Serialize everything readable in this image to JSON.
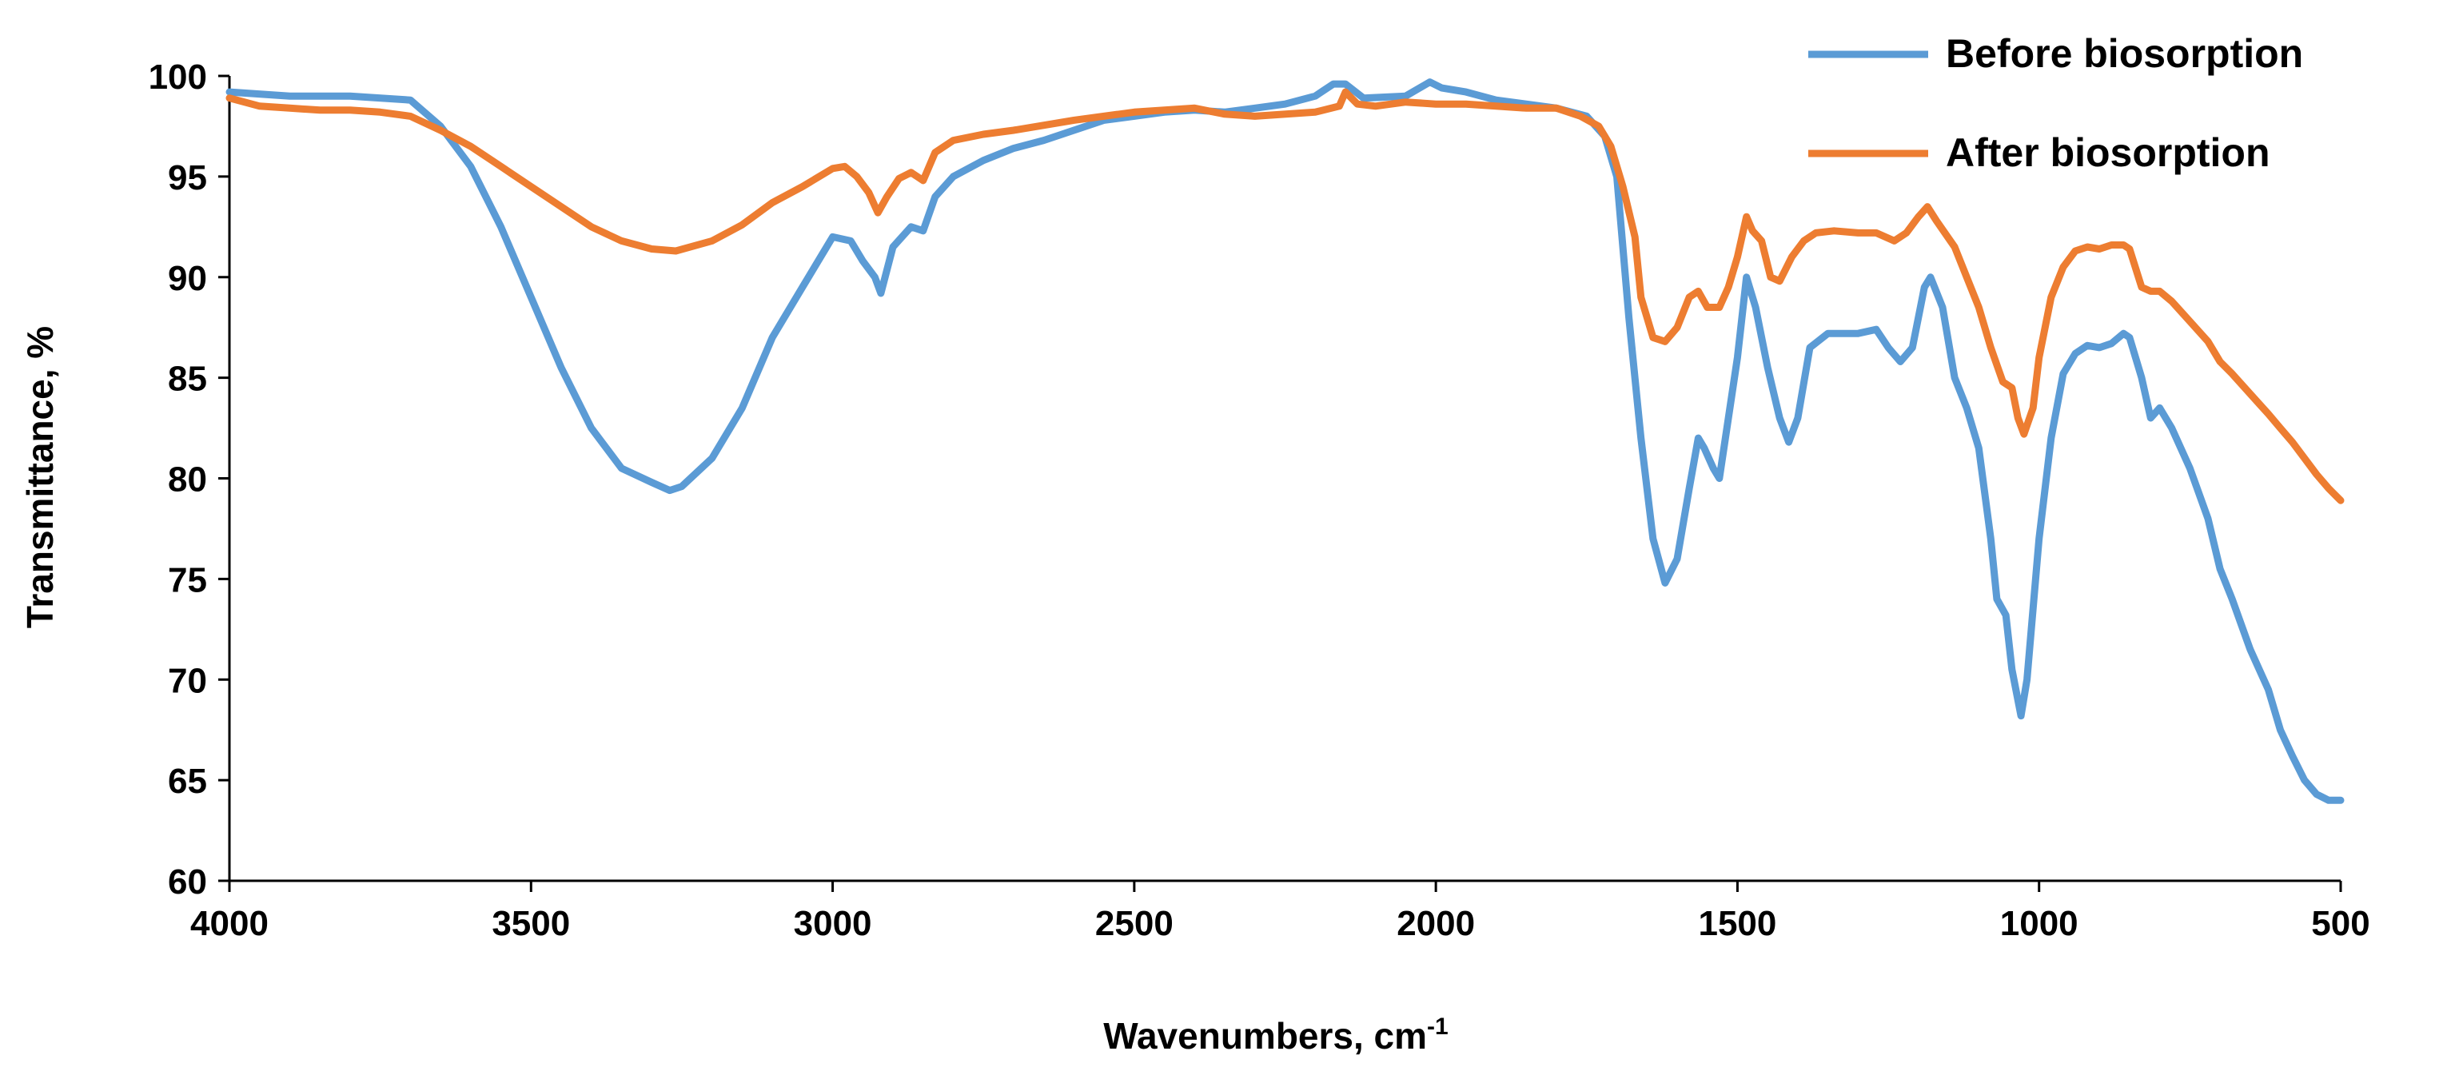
{
  "chart_data": {
    "type": "line",
    "title": "",
    "xlabel": "Wavenumbers, cm",
    "xlabel_superscript": "-1",
    "ylabel": "Transmittance, %",
    "xlim": [
      4000,
      500
    ],
    "ylim": [
      60,
      100
    ],
    "x_reversed": true,
    "x_ticks": [
      4000,
      3500,
      3000,
      2500,
      2000,
      1500,
      1000,
      500
    ],
    "y_ticks": [
      60,
      65,
      70,
      75,
      80,
      85,
      90,
      95,
      100
    ],
    "grid": false,
    "legend_position": "top-right",
    "series": [
      {
        "name": "Before biosorption",
        "color": "#5B9BD5",
        "points": [
          [
            4000,
            99.2
          ],
          [
            3900,
            99.0
          ],
          [
            3800,
            99.0
          ],
          [
            3700,
            98.8
          ],
          [
            3650,
            97.5
          ],
          [
            3600,
            95.5
          ],
          [
            3550,
            92.5
          ],
          [
            3500,
            89
          ],
          [
            3450,
            85.5
          ],
          [
            3400,
            82.5
          ],
          [
            3350,
            80.5
          ],
          [
            3300,
            79.8
          ],
          [
            3270,
            79.4
          ],
          [
            3250,
            79.6
          ],
          [
            3200,
            81
          ],
          [
            3150,
            83.5
          ],
          [
            3100,
            87
          ],
          [
            3050,
            89.5
          ],
          [
            3000,
            92
          ],
          [
            2970,
            91.8
          ],
          [
            2950,
            90.8
          ],
          [
            2930,
            90
          ],
          [
            2920,
            89.2
          ],
          [
            2900,
            91.5
          ],
          [
            2870,
            92.5
          ],
          [
            2850,
            92.3
          ],
          [
            2830,
            94
          ],
          [
            2800,
            95
          ],
          [
            2750,
            95.8
          ],
          [
            2700,
            96.4
          ],
          [
            2650,
            96.8
          ],
          [
            2600,
            97.3
          ],
          [
            2550,
            97.8
          ],
          [
            2500,
            98.0
          ],
          [
            2450,
            98.2
          ],
          [
            2400,
            98.3
          ],
          [
            2350,
            98.2
          ],
          [
            2300,
            98.4
          ],
          [
            2250,
            98.6
          ],
          [
            2200,
            99.0
          ],
          [
            2170,
            99.6
          ],
          [
            2150,
            99.6
          ],
          [
            2120,
            98.9
          ],
          [
            2050,
            99.0
          ],
          [
            2010,
            99.7
          ],
          [
            1990,
            99.4
          ],
          [
            1950,
            99.2
          ],
          [
            1900,
            98.8
          ],
          [
            1800,
            98.4
          ],
          [
            1750,
            98.0
          ],
          [
            1720,
            97.0
          ],
          [
            1700,
            95
          ],
          [
            1680,
            88
          ],
          [
            1660,
            82
          ],
          [
            1640,
            77
          ],
          [
            1620,
            74.8
          ],
          [
            1600,
            76
          ],
          [
            1580,
            79.5
          ],
          [
            1565,
            82
          ],
          [
            1555,
            81.5
          ],
          [
            1540,
            80.5
          ],
          [
            1530,
            80
          ],
          [
            1515,
            83
          ],
          [
            1500,
            86
          ],
          [
            1485,
            90
          ],
          [
            1470,
            88.5
          ],
          [
            1450,
            85.5
          ],
          [
            1430,
            83
          ],
          [
            1415,
            81.8
          ],
          [
            1400,
            83
          ],
          [
            1380,
            86.5
          ],
          [
            1350,
            87.2
          ],
          [
            1320,
            87.2
          ],
          [
            1300,
            87.2
          ],
          [
            1270,
            87.4
          ],
          [
            1250,
            86.5
          ],
          [
            1230,
            85.8
          ],
          [
            1210,
            86.5
          ],
          [
            1190,
            89.5
          ],
          [
            1180,
            90
          ],
          [
            1160,
            88.5
          ],
          [
            1140,
            85
          ],
          [
            1120,
            83.5
          ],
          [
            1100,
            81.5
          ],
          [
            1080,
            77
          ],
          [
            1070,
            74
          ],
          [
            1055,
            73.2
          ],
          [
            1045,
            70.5
          ],
          [
            1030,
            68.2
          ],
          [
            1020,
            70
          ],
          [
            1000,
            77
          ],
          [
            980,
            82
          ],
          [
            960,
            85.2
          ],
          [
            940,
            86.2
          ],
          [
            920,
            86.6
          ],
          [
            900,
            86.5
          ],
          [
            880,
            86.7
          ],
          [
            860,
            87.2
          ],
          [
            850,
            87
          ],
          [
            830,
            85
          ],
          [
            815,
            83
          ],
          [
            800,
            83.5
          ],
          [
            780,
            82.5
          ],
          [
            750,
            80.5
          ],
          [
            720,
            78
          ],
          [
            700,
            75.5
          ],
          [
            680,
            74
          ],
          [
            650,
            71.5
          ],
          [
            620,
            69.5
          ],
          [
            600,
            67.5
          ],
          [
            580,
            66.2
          ],
          [
            560,
            65
          ],
          [
            540,
            64.3
          ],
          [
            520,
            64.0
          ],
          [
            500,
            64.0
          ]
        ]
      },
      {
        "name": "After biosorption",
        "color": "#ED7D31",
        "points": [
          [
            4000,
            98.9
          ],
          [
            3950,
            98.5
          ],
          [
            3900,
            98.4
          ],
          [
            3850,
            98.3
          ],
          [
            3800,
            98.3
          ],
          [
            3750,
            98.2
          ],
          [
            3700,
            98.0
          ],
          [
            3650,
            97.3
          ],
          [
            3600,
            96.5
          ],
          [
            3550,
            95.5
          ],
          [
            3500,
            94.5
          ],
          [
            3450,
            93.5
          ],
          [
            3400,
            92.5
          ],
          [
            3350,
            91.8
          ],
          [
            3300,
            91.4
          ],
          [
            3260,
            91.3
          ],
          [
            3200,
            91.8
          ],
          [
            3150,
            92.6
          ],
          [
            3100,
            93.7
          ],
          [
            3050,
            94.5
          ],
          [
            3000,
            95.4
          ],
          [
            2980,
            95.5
          ],
          [
            2960,
            95.0
          ],
          [
            2940,
            94.2
          ],
          [
            2925,
            93.2
          ],
          [
            2910,
            94.0
          ],
          [
            2890,
            94.9
          ],
          [
            2870,
            95.2
          ],
          [
            2850,
            94.8
          ],
          [
            2830,
            96.2
          ],
          [
            2800,
            96.8
          ],
          [
            2750,
            97.1
          ],
          [
            2700,
            97.3
          ],
          [
            2600,
            97.8
          ],
          [
            2500,
            98.2
          ],
          [
            2400,
            98.4
          ],
          [
            2350,
            98.1
          ],
          [
            2300,
            98.0
          ],
          [
            2200,
            98.2
          ],
          [
            2160,
            98.5
          ],
          [
            2150,
            99.2
          ],
          [
            2130,
            98.6
          ],
          [
            2100,
            98.5
          ],
          [
            2050,
            98.7
          ],
          [
            2000,
            98.6
          ],
          [
            1950,
            98.6
          ],
          [
            1900,
            98.5
          ],
          [
            1850,
            98.4
          ],
          [
            1800,
            98.4
          ],
          [
            1760,
            98.0
          ],
          [
            1730,
            97.5
          ],
          [
            1710,
            96.5
          ],
          [
            1690,
            94.5
          ],
          [
            1670,
            92
          ],
          [
            1660,
            89
          ],
          [
            1640,
            87
          ],
          [
            1620,
            86.8
          ],
          [
            1600,
            87.5
          ],
          [
            1580,
            89
          ],
          [
            1565,
            89.3
          ],
          [
            1550,
            88.5
          ],
          [
            1530,
            88.5
          ],
          [
            1515,
            89.5
          ],
          [
            1500,
            91
          ],
          [
            1485,
            93
          ],
          [
            1475,
            92.3
          ],
          [
            1460,
            91.8
          ],
          [
            1445,
            90
          ],
          [
            1430,
            89.8
          ],
          [
            1410,
            91
          ],
          [
            1390,
            91.8
          ],
          [
            1370,
            92.2
          ],
          [
            1340,
            92.3
          ],
          [
            1300,
            92.2
          ],
          [
            1270,
            92.2
          ],
          [
            1240,
            91.8
          ],
          [
            1220,
            92.2
          ],
          [
            1200,
            93
          ],
          [
            1185,
            93.5
          ],
          [
            1170,
            92.8
          ],
          [
            1140,
            91.5
          ],
          [
            1120,
            90
          ],
          [
            1100,
            88.5
          ],
          [
            1080,
            86.5
          ],
          [
            1060,
            84.8
          ],
          [
            1045,
            84.5
          ],
          [
            1035,
            83
          ],
          [
            1025,
            82.2
          ],
          [
            1010,
            83.5
          ],
          [
            1000,
            86
          ],
          [
            980,
            89
          ],
          [
            960,
            90.5
          ],
          [
            940,
            91.3
          ],
          [
            920,
            91.5
          ],
          [
            900,
            91.4
          ],
          [
            880,
            91.6
          ],
          [
            860,
            91.6
          ],
          [
            850,
            91.4
          ],
          [
            830,
            89.5
          ],
          [
            815,
            89.3
          ],
          [
            800,
            89.3
          ],
          [
            780,
            88.8
          ],
          [
            750,
            87.8
          ],
          [
            720,
            86.8
          ],
          [
            700,
            85.8
          ],
          [
            680,
            85.2
          ],
          [
            650,
            84.2
          ],
          [
            620,
            83.2
          ],
          [
            600,
            82.5
          ],
          [
            580,
            81.8
          ],
          [
            560,
            81.0
          ],
          [
            540,
            80.2
          ],
          [
            520,
            79.5
          ],
          [
            500,
            78.9
          ]
        ]
      }
    ]
  }
}
